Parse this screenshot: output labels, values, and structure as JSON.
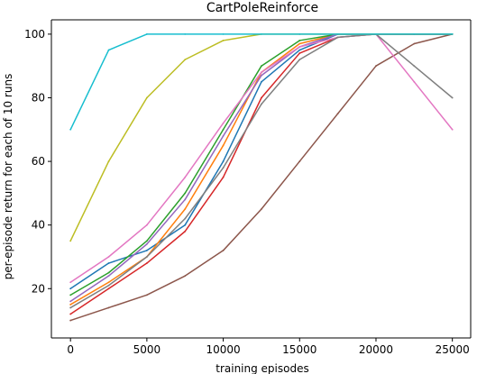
{
  "chart_data": {
    "type": "line",
    "title": "CartPoleReinforce",
    "xlabel": "training episodes",
    "ylabel": "per-episode return for each of 10 runs",
    "xlim": [
      -1250,
      26200
    ],
    "ylim": [
      4.5,
      104.5
    ],
    "xticks": [
      0,
      5000,
      10000,
      15000,
      20000,
      25000
    ],
    "yticks": [
      20,
      40,
      60,
      80,
      100
    ],
    "grid": false,
    "legend": "none",
    "series": [
      {
        "color": "#1f77b4",
        "x": [
          0,
          2500,
          5000,
          7500,
          10000,
          12500,
          15000,
          17500,
          20000,
          22500,
          25000
        ],
        "y": [
          20,
          28,
          32,
          40,
          60,
          85,
          95,
          100,
          100,
          100,
          100
        ]
      },
      {
        "color": "#ff7f0e",
        "x": [
          0,
          2500,
          5000,
          7500,
          10000,
          12500,
          15000,
          17500,
          20000,
          22500,
          25000
        ],
        "y": [
          15,
          22,
          30,
          45,
          65,
          88,
          97,
          100,
          100,
          100,
          100
        ]
      },
      {
        "color": "#2ca02c",
        "x": [
          0,
          2500,
          5000,
          7500,
          10000,
          12500,
          15000,
          17500,
          20000,
          22500,
          25000
        ],
        "y": [
          18,
          25,
          35,
          50,
          70,
          90,
          98,
          100,
          100,
          100,
          100
        ]
      },
      {
        "color": "#d62728",
        "x": [
          0,
          2500,
          5000,
          7500,
          10000,
          12500,
          15000,
          17500,
          20000,
          22500,
          25000
        ],
        "y": [
          12,
          20,
          28,
          38,
          55,
          80,
          94,
          99,
          100,
          100,
          100
        ]
      },
      {
        "color": "#9467bd",
        "x": [
          0,
          2500,
          5000,
          7500,
          10000,
          12500,
          15000,
          17500,
          20000,
          22500,
          25000
        ],
        "y": [
          16,
          24,
          34,
          48,
          68,
          87,
          96,
          100,
          100,
          100,
          100
        ]
      },
      {
        "color": "#8c564b",
        "x": [
          0,
          2500,
          5000,
          7500,
          10000,
          12500,
          15000,
          17500,
          20000,
          22500,
          25000
        ],
        "y": [
          10,
          14,
          18,
          24,
          32,
          45,
          60,
          75,
          90,
          97,
          100
        ]
      },
      {
        "color": "#e377c2",
        "x": [
          0,
          2500,
          5000,
          7500,
          10000,
          12500,
          15000,
          17500,
          20000,
          22500,
          25000
        ],
        "y": [
          22,
          30,
          40,
          55,
          72,
          88,
          96,
          99,
          100,
          85,
          70
        ]
      },
      {
        "color": "#7f7f7f",
        "x": [
          0,
          2500,
          5000,
          7500,
          10000,
          12500,
          15000,
          17500,
          20000,
          22500,
          25000
        ],
        "y": [
          14,
          21,
          30,
          42,
          58,
          78,
          92,
          99,
          100,
          90,
          80
        ]
      },
      {
        "color": "#bcbd22",
        "x": [
          0,
          2500,
          5000,
          7500,
          10000,
          12500,
          15000,
          17500,
          20000,
          22500,
          25000
        ],
        "y": [
          35,
          60,
          80,
          92,
          98,
          100,
          100,
          100,
          100,
          100,
          100
        ]
      },
      {
        "color": "#17becf",
        "x": [
          0,
          2500,
          5000,
          7500,
          10000,
          12500,
          15000,
          17500,
          20000,
          22500,
          25000
        ],
        "y": [
          70,
          95,
          100,
          100,
          100,
          100,
          100,
          100,
          100,
          100,
          100
        ]
      }
    ]
  }
}
